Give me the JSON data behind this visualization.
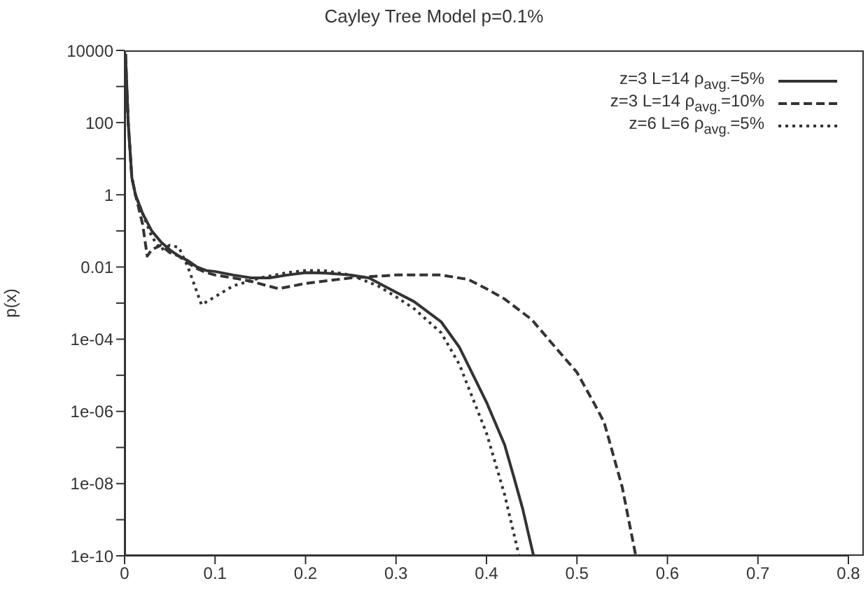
{
  "chart_data": {
    "type": "line",
    "title": "Cayley Tree Model p=0.1%",
    "ylabel": "p(x)",
    "log": "y",
    "legend": "top right",
    "marker": "none",
    "xlim": [
      0,
      0.8
    ],
    "xticks": [
      0,
      0.1,
      0.2,
      0.3,
      0.4,
      0.5,
      0.6,
      0.7,
      0.8
    ],
    "ylim": [
      1e-10,
      10000
    ],
    "yticks": [
      {
        "value": 1e-10,
        "label": "1e-10"
      },
      {
        "value": 1e-09,
        "label": null
      },
      {
        "value": 1e-08,
        "label": "1e-08"
      },
      {
        "value": 1e-07,
        "label": null
      },
      {
        "value": 1e-06,
        "label": "1e-06"
      },
      {
        "value": 1e-05,
        "label": null
      },
      {
        "value": 0.0001,
        "label": "1e-04"
      },
      {
        "value": 0.001,
        "label": null
      },
      {
        "value": 0.01,
        "label": "0.01"
      },
      {
        "value": 0.1,
        "label": null
      },
      {
        "value": 1,
        "label": "1"
      },
      {
        "value": 10,
        "label": null
      },
      {
        "value": 100,
        "label": "100"
      },
      {
        "value": 1000,
        "label": null
      },
      {
        "value": 10000,
        "label": "10000"
      }
    ],
    "series": [
      {
        "name": "z=3 L=14 ρ$_{avg.}$=5%",
        "color": "#333333",
        "line_style": "solid",
        "x": [
          0.001,
          0.004,
          0.008,
          0.012,
          0.02,
          0.03,
          0.04,
          0.05,
          0.06,
          0.07,
          0.08,
          0.09,
          0.1,
          0.12,
          0.14,
          0.16,
          0.18,
          0.2,
          0.22,
          0.25,
          0.27,
          0.3,
          0.32,
          0.35,
          0.37,
          0.4,
          0.42,
          0.43,
          0.44,
          0.452
        ],
        "values": [
          8000,
          100,
          3,
          1,
          0.3,
          0.1,
          0.05,
          0.03,
          0.02,
          0.015,
          0.01,
          0.008,
          0.0075,
          0.006,
          0.005,
          0.005,
          0.006,
          0.007,
          0.0068,
          0.006,
          0.005,
          0.002,
          0.0011,
          0.0003,
          6e-05,
          1.8e-06,
          1.2e-07,
          1.6e-08,
          2e-09,
          1e-10
        ]
      },
      {
        "name": "z=3 L=14 ρ$_{avg.}$=10%",
        "color": "#333333",
        "line_style": "dashed",
        "x": [
          0.001,
          0.004,
          0.008,
          0.012,
          0.02,
          0.025,
          0.03,
          0.04,
          0.05,
          0.06,
          0.07,
          0.08,
          0.09,
          0.1,
          0.12,
          0.14,
          0.17,
          0.2,
          0.25,
          0.3,
          0.35,
          0.38,
          0.4,
          0.42,
          0.45,
          0.47,
          0.5,
          0.52,
          0.53,
          0.55,
          0.565
        ],
        "values": [
          8000,
          100,
          3,
          1,
          0.15,
          0.02,
          0.03,
          0.04,
          0.025,
          0.02,
          0.013,
          0.009,
          0.007,
          0.006,
          0.005,
          0.004,
          0.0025,
          0.0035,
          0.005,
          0.006,
          0.006,
          0.0045,
          0.0025,
          0.0013,
          0.00035,
          9e-05,
          1.2e-05,
          1.5e-06,
          5e-07,
          8e-09,
          1e-10
        ]
      },
      {
        "name": "z=6 L=6 ρ$_{avg.}$=5%",
        "color": "#333333",
        "line_style": "dotted",
        "x": [
          0.001,
          0.004,
          0.008,
          0.012,
          0.02,
          0.03,
          0.04,
          0.05,
          0.06,
          0.07,
          0.085,
          0.1,
          0.12,
          0.15,
          0.18,
          0.2,
          0.22,
          0.25,
          0.28,
          0.3,
          0.32,
          0.35,
          0.37,
          0.4,
          0.42,
          0.436
        ],
        "values": [
          8000,
          100,
          3,
          1,
          0.3,
          0.07,
          0.03,
          0.04,
          0.035,
          0.01,
          0.0009,
          0.0015,
          0.003,
          0.005,
          0.007,
          0.008,
          0.008,
          0.006,
          0.003,
          0.0015,
          0.0007,
          0.00015,
          2e-05,
          2.5e-07,
          5e-09,
          1e-10
        ]
      }
    ]
  }
}
